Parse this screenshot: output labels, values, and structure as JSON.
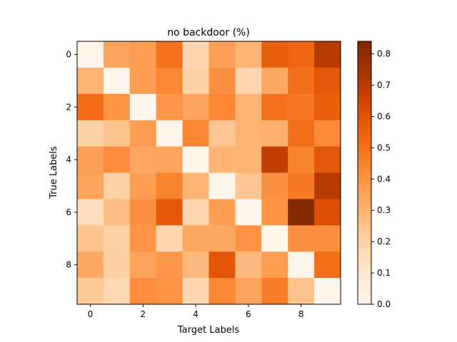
{
  "chart_data": {
    "type": "heatmap",
    "title": "no backdoor (%)",
    "xlabel": "Target Labels",
    "ylabel": "True Labels",
    "x_ticks": [
      0,
      2,
      4,
      6,
      8
    ],
    "y_ticks": [
      0,
      2,
      4,
      6,
      8
    ],
    "colorbar_ticks": [
      "0.0",
      "0.1",
      "0.2",
      "0.3",
      "0.4",
      "0.5",
      "0.6",
      "0.7",
      "0.8"
    ],
    "vmin": 0.0,
    "vmax": 0.84,
    "colormap": "Oranges",
    "grid": false,
    "values": [
      [
        0.0,
        0.35,
        0.37,
        0.5,
        0.18,
        0.36,
        0.3,
        0.56,
        0.53,
        0.7
      ],
      [
        0.3,
        0.0,
        0.37,
        0.44,
        0.2,
        0.41,
        0.18,
        0.33,
        0.51,
        0.58
      ],
      [
        0.52,
        0.4,
        0.0,
        0.39,
        0.35,
        0.44,
        0.3,
        0.5,
        0.48,
        0.56
      ],
      [
        0.2,
        0.25,
        0.37,
        0.0,
        0.44,
        0.24,
        0.3,
        0.31,
        0.51,
        0.43
      ],
      [
        0.36,
        0.42,
        0.34,
        0.35,
        0.0,
        0.3,
        0.3,
        0.68,
        0.45,
        0.58
      ],
      [
        0.35,
        0.2,
        0.37,
        0.45,
        0.3,
        0.0,
        0.24,
        0.41,
        0.48,
        0.7
      ],
      [
        0.15,
        0.27,
        0.41,
        0.58,
        0.18,
        0.37,
        0.0,
        0.4,
        0.82,
        0.61
      ],
      [
        0.25,
        0.2,
        0.4,
        0.18,
        0.33,
        0.33,
        0.4,
        0.0,
        0.41,
        0.41
      ],
      [
        0.33,
        0.21,
        0.35,
        0.39,
        0.28,
        0.59,
        0.28,
        0.37,
        0.0,
        0.51
      ],
      [
        0.23,
        0.17,
        0.42,
        0.4,
        0.18,
        0.44,
        0.35,
        0.47,
        0.25,
        0.0
      ]
    ]
  }
}
